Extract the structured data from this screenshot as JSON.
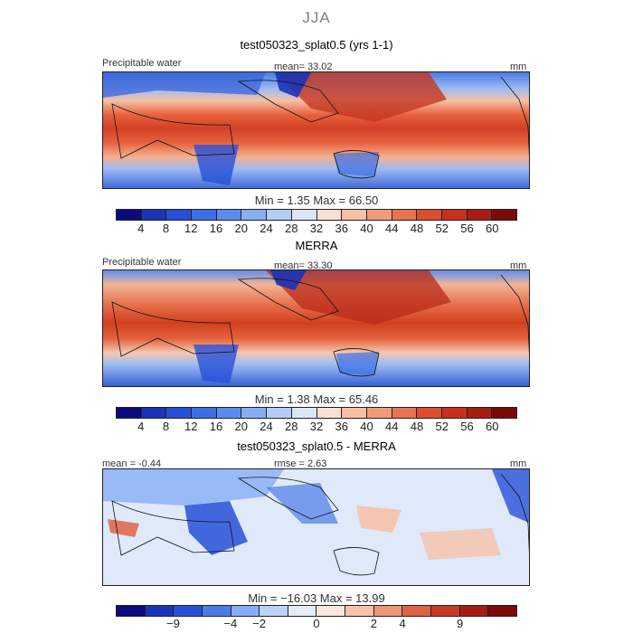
{
  "season": "JJA",
  "panels": [
    {
      "title": "test050323_splat0.5 (yrs 1-1)",
      "left_label": "Precipitable water",
      "center_label": "mean=  33.02",
      "units": "mm",
      "minmax": "Min =    1.35  Max =  66.50"
    },
    {
      "title": "MERRA",
      "left_label": "Precipitable water",
      "center_label": "mean=  33.30",
      "units": "mm",
      "minmax": "Min =    1.38  Max =  65.46"
    },
    {
      "title": "test050323_splat0.5 - MERRA",
      "left_label": "mean =   -0.44",
      "center_label": "rmse =    2.63",
      "units": "mm",
      "minmax": "Min = −16.03  Max =  13.99"
    }
  ],
  "colorbars": {
    "abs_colors": [
      "#0b0b80",
      "#1a34b8",
      "#2750d8",
      "#3c6fe6",
      "#5a8cf0",
      "#86aef5",
      "#b3cdf7",
      "#dbe6f9",
      "#f9e0d4",
      "#f8bfa3",
      "#f39b79",
      "#ea734f",
      "#dc4d2e",
      "#c8301c",
      "#a91c12",
      "#7a0a08"
    ],
    "diff_colors": [
      "#0b0b80",
      "#1a34b8",
      "#2750d8",
      "#4b7be8",
      "#86aef5",
      "#bcd3f6",
      "#e4ecf8",
      "#f9e6dc",
      "#f6c2aa",
      "#ee9576",
      "#df6444",
      "#c73a24",
      "#a51c12",
      "#7a0a08"
    ]
  },
  "chart_data": [
    {
      "type": "heatmap",
      "title": "test050323_splat0.5 (yrs 1-1)",
      "variable": "Precipitable water",
      "units": "mm",
      "mean": 33.02,
      "min": 1.35,
      "max": 66.5,
      "colorbar_levels": [
        "4",
        "8",
        "12",
        "16",
        "20",
        "24",
        "28",
        "32",
        "36",
        "40",
        "44",
        "48",
        "52",
        "56",
        "60"
      ]
    },
    {
      "type": "heatmap",
      "title": "MERRA",
      "variable": "Precipitable water",
      "units": "mm",
      "mean": 33.3,
      "min": 1.38,
      "max": 65.46,
      "colorbar_levels": [
        "4",
        "8",
        "12",
        "16",
        "20",
        "24",
        "28",
        "32",
        "36",
        "40",
        "44",
        "48",
        "52",
        "56",
        "60"
      ]
    },
    {
      "type": "heatmap",
      "title": "test050323_splat0.5 - MERRA",
      "units": "mm",
      "mean": -0.44,
      "rmse": 2.63,
      "min": -16.03,
      "max": 13.99,
      "colorbar_levels": [
        "−9",
        "−4",
        "−2",
        "0",
        "2",
        "4",
        "9"
      ]
    }
  ]
}
